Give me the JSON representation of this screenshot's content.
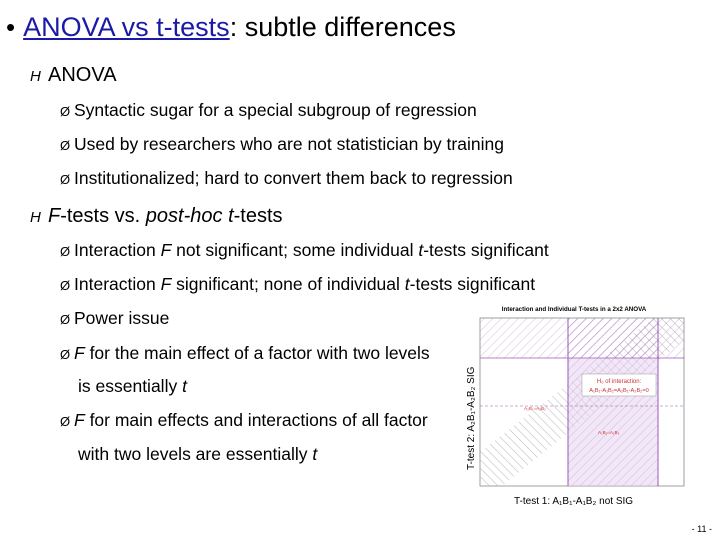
{
  "title": {
    "bullet": "•",
    "link": "ANOVA vs t-tests",
    "rest": ": subtle differences"
  },
  "sections": [
    {
      "marker": "H",
      "label": "ANOVA",
      "items": [
        "Syntactic sugar for a special subgroup of regression",
        "Used by researchers who are not statistician by training",
        "Institutionalized; hard to convert them back to regression"
      ]
    },
    {
      "marker": "H",
      "label_a": "F",
      "label_b": "-tests vs. ",
      "label_c": "post-hoc t",
      "label_d": "-tests",
      "items": [
        {
          "a": "Interaction ",
          "b": "F",
          "c": " not significant; some individual ",
          "d": "t",
          "e": "-tests significant"
        },
        {
          "a": "Interaction ",
          "b": "F",
          "c": " significant; none of individual ",
          "d": "t",
          "e": "-tests significant"
        },
        {
          "a": "Power issue"
        },
        {
          "b": "F",
          "c": " for the main effect of a factor with two levels",
          "cont_a": "is essentially ",
          "cont_b": "t"
        },
        {
          "b": "F",
          "c": " for main effects and interactions of all factor",
          "cont_a": "with two levels are essentially ",
          "cont_b": "t"
        }
      ]
    }
  ],
  "arrow": "Ø",
  "figure": {
    "title": "Interaction and Individual T-tests in a 2x2 ANOVA",
    "ylabel": "T-test 2: A₂B₁-A₂B₂ SIG",
    "xlabel": "T-test 1: A₁B₁-A₁B₂ not SIG",
    "annot_line1": "H₀ of interaction:",
    "annot_line2": "A₁B₁-A₁B₂=A₂B₁-A₂B₂=0",
    "small1": "A₂B₁=A₂B₂",
    "small2": "A₁B₁=A₁B₂",
    "colors": {
      "purple": "#9b59b6",
      "grid": "#b0b0b0",
      "red": "#cc3333"
    }
  },
  "page_number": "- 11 -"
}
